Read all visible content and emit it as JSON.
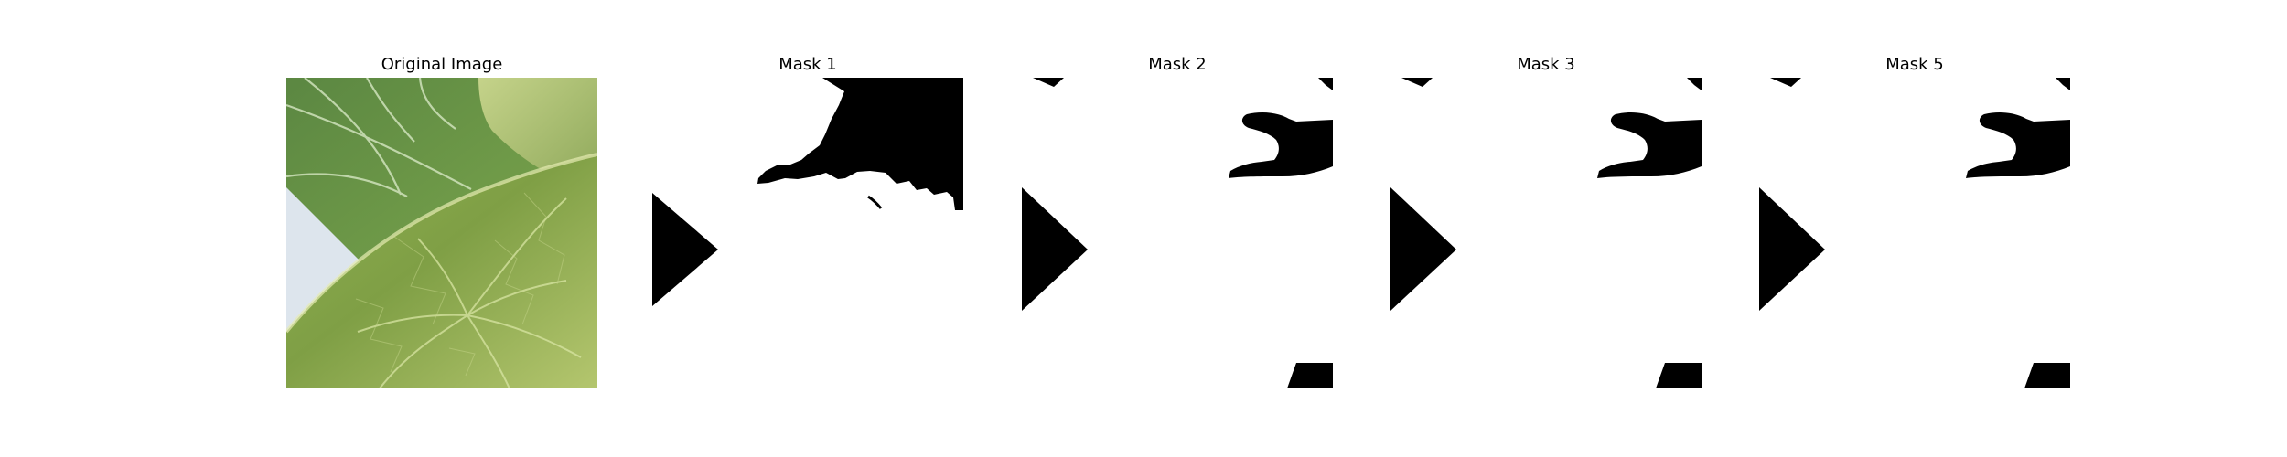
{
  "figure": {
    "panels": [
      {
        "title": "Original Image"
      },
      {
        "title": "Mask 1"
      },
      {
        "title": "Mask 2"
      },
      {
        "title": "Mask 3"
      },
      {
        "title": "Mask 5"
      }
    ]
  },
  "colors": {
    "background": "#ffffff",
    "mask_foreground": "#000000",
    "leaf_dark": "#5f873d",
    "leaf_light": "#a7bf62",
    "leaf_pale": "#d6df9f",
    "sky": "#dfe6ef"
  }
}
